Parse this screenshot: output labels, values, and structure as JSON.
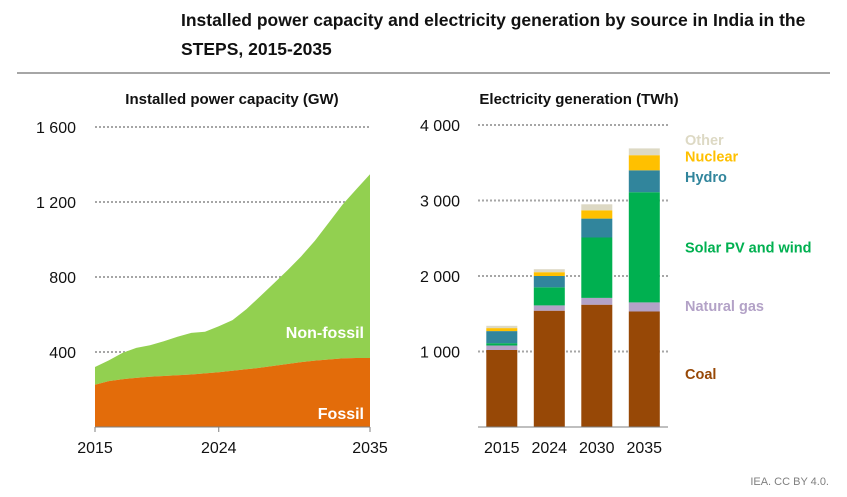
{
  "title": "Installed power capacity and electricity generation by source in India in the STEPS, 2015-2035",
  "credit": "IEA. CC BY 4.0.",
  "colors": {
    "fossil": "#e36c0a",
    "non_fossil": "#92d050",
    "coal": "#974806",
    "natural_gas": "#b3a2c7",
    "solar_wind": "#00b050",
    "hydro": "#31859c",
    "nuclear": "#ffc000",
    "other": "#ddd9c4",
    "gridline": "#a6a6a6",
    "axis": "#7f7f7f"
  },
  "chart_data": [
    {
      "type": "area",
      "title": "Installed power capacity (GW)",
      "x": [
        2015,
        2016,
        2017,
        2018,
        2019,
        2020,
        2021,
        2022,
        2023,
        2024,
        2025,
        2026,
        2027,
        2028,
        2029,
        2030,
        2031,
        2032,
        2033,
        2034,
        2035
      ],
      "x_ticks": [
        "2015",
        "2024",
        "2035"
      ],
      "y_ticks": [
        "400",
        "800",
        "1 200",
        "1 600"
      ],
      "y_tick_values": [
        400,
        800,
        1200,
        1600
      ],
      "ylim": [
        0,
        1600
      ],
      "grid": true,
      "series": [
        {
          "name": "Fossil",
          "color_key": "fossil",
          "values": [
            225,
            245,
            255,
            262,
            268,
            272,
            276,
            280,
            286,
            292,
            300,
            308,
            316,
            326,
            336,
            346,
            354,
            360,
            366,
            368,
            368
          ]
        },
        {
          "name": "Non-fossil",
          "color_key": "non_fossil",
          "values": [
            95,
            110,
            140,
            160,
            168,
            185,
            205,
            222,
            222,
            245,
            270,
            320,
            380,
            440,
            500,
            565,
            640,
            730,
            820,
            900,
            980
          ]
        }
      ],
      "inline_labels": [
        "Non-fossil",
        "Fossil"
      ]
    },
    {
      "type": "bar",
      "stacked": true,
      "title": "Electricity generation (TWh)",
      "categories": [
        "2015",
        "2024",
        "2030",
        "2035"
      ],
      "y_ticks": [
        "1 000",
        "2 000",
        "3 000",
        "4 000"
      ],
      "y_tick_values": [
        1000,
        2000,
        3000,
        4000
      ],
      "ylim": [
        0,
        4000
      ],
      "grid": true,
      "series": [
        {
          "name": "Coal",
          "color_key": "coal",
          "values": [
            1020,
            1540,
            1620,
            1530
          ]
        },
        {
          "name": "Natural gas",
          "color_key": "natural_gas",
          "values": [
            60,
            70,
            90,
            120
          ]
        },
        {
          "name": "Solar PV and wind",
          "color_key": "solar_wind",
          "values": [
            30,
            240,
            800,
            1460
          ]
        },
        {
          "name": "Hydro",
          "color_key": "hydro",
          "values": [
            160,
            150,
            250,
            290
          ]
        },
        {
          "name": "Nuclear",
          "color_key": "nuclear",
          "values": [
            40,
            50,
            110,
            200
          ]
        },
        {
          "name": "Other",
          "color_key": "other",
          "values": [
            30,
            40,
            80,
            90
          ]
        }
      ],
      "legend": [
        {
          "label": "Other",
          "color_key": "other",
          "value": 3800
        },
        {
          "label": "Nuclear",
          "color_key": "nuclear",
          "value": 3580
        },
        {
          "label": "Hydro",
          "color_key": "hydro",
          "value": 3310
        },
        {
          "label": "Solar PV and wind",
          "color_key": "solar_wind",
          "value": 2380
        },
        {
          "label": "Natural gas",
          "color_key": "natural_gas",
          "value": 1600
        },
        {
          "label": "Coal",
          "color_key": "coal",
          "value": 700
        }
      ]
    }
  ]
}
